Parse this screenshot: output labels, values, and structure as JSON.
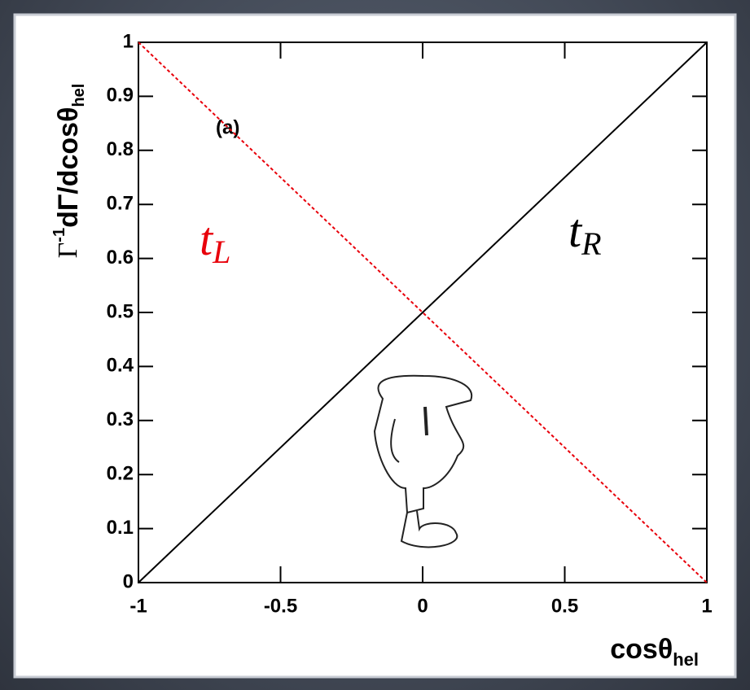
{
  "chart_data": {
    "type": "line",
    "ylabel": [
      "Γ",
      "-1",
      "dΓ/dcosθ",
      "hel"
    ],
    "xlabel": [
      "cosθ",
      "hel"
    ],
    "annotation": "(a)",
    "x": [
      -1,
      1
    ],
    "series": [
      {
        "name": "tR",
        "color": "#000000",
        "dashed": false,
        "values": [
          0,
          1
        ]
      },
      {
        "name": "tL",
        "color": "#e8000b",
        "dashed": true,
        "values": [
          1,
          0
        ]
      }
    ],
    "xlim": [
      -1,
      1
    ],
    "xticks": [
      -1,
      -0.5,
      0,
      0.5,
      1
    ],
    "ylim": [
      0,
      1
    ],
    "yticks": [
      0,
      0.1,
      0.2,
      0.3,
      0.4,
      0.5,
      0.6,
      0.7,
      0.8,
      0.9,
      1
    ],
    "grid": false
  }
}
